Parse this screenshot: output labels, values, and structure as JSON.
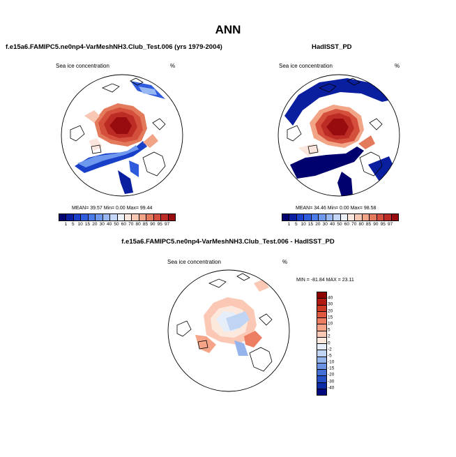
{
  "page": {
    "title": "ANN"
  },
  "chart_data": [
    {
      "type": "heatmap",
      "title": "f.e15a6.FAMIPC5.ne0np4-VarMeshNH3.Club_Test.006 (yrs 1979-2004)",
      "variable": "Sea ice concentration",
      "units": "%",
      "projection": "north polar stereographic",
      "stats": {
        "mean": "39.57",
        "min": "0.00",
        "max": "99.44"
      },
      "stats_text": "MEAN=  39.57  Min=   0.00  Max=  99.44",
      "colorbar_ticks": [
        "1",
        "5",
        "10",
        "15",
        "20",
        "30",
        "40",
        "50",
        "60",
        "70",
        "80",
        "85",
        "90",
        "95",
        "97"
      ],
      "colorbar_colors": [
        "#00006e",
        "#0a1ea0",
        "#1940c8",
        "#2f5cdc",
        "#4a7ae6",
        "#6d98ee",
        "#98b8f4",
        "#c4d6f8",
        "#eaeff8",
        "#fbe6de",
        "#f8c8b4",
        "#f2a486",
        "#e47a5c",
        "#d4503c",
        "#bc2c24",
        "#980c10"
      ]
    },
    {
      "type": "heatmap",
      "title": "HadISST_PD",
      "variable": "Sea ice concentration",
      "units": "%",
      "projection": "north polar stereographic",
      "stats": {
        "mean": "34.46",
        "min": "0.00",
        "max": "98.58"
      },
      "stats_text": "MEAN=  34.46  Min=   0.00  Max=  98.58",
      "colorbar_ticks": [
        "1",
        "5",
        "10",
        "15",
        "20",
        "30",
        "40",
        "50",
        "60",
        "70",
        "80",
        "85",
        "90",
        "95",
        "97"
      ],
      "colorbar_colors": [
        "#00006e",
        "#0a1ea0",
        "#1940c8",
        "#2f5cdc",
        "#4a7ae6",
        "#6d98ee",
        "#98b8f4",
        "#c4d6f8",
        "#eaeff8",
        "#fbe6de",
        "#f8c8b4",
        "#f2a486",
        "#e47a5c",
        "#d4503c",
        "#bc2c24",
        "#980c10"
      ]
    },
    {
      "type": "heatmap",
      "title": "f.e15a6.FAMIPC5.ne0np4-VarMeshNH3.Club_Test.006 - HadISST_PD",
      "variable": "Sea ice concentration",
      "units": "%",
      "projection": "north polar stereographic",
      "stats": {
        "min": "-81.84",
        "max": "23.11"
      },
      "stats_text": "MIN = -81.84  MAX =  23.11",
      "colorbar_ticks": [
        "40",
        "30",
        "20",
        "15",
        "10",
        "5",
        "2",
        "0",
        "-2",
        "-5",
        "-10",
        "-15",
        "-20",
        "-30",
        "-40"
      ],
      "colorbar_colors": [
        "#8c0000",
        "#b01a10",
        "#cc3a24",
        "#e05a40",
        "#ee7e62",
        "#f6a488",
        "#fac8b4",
        "#fde8de",
        "#e6eefa",
        "#c0d4f4",
        "#96b4ec",
        "#6a92e2",
        "#4470d6",
        "#2450c4",
        "#0c2ca6",
        "#000a7e"
      ]
    }
  ]
}
